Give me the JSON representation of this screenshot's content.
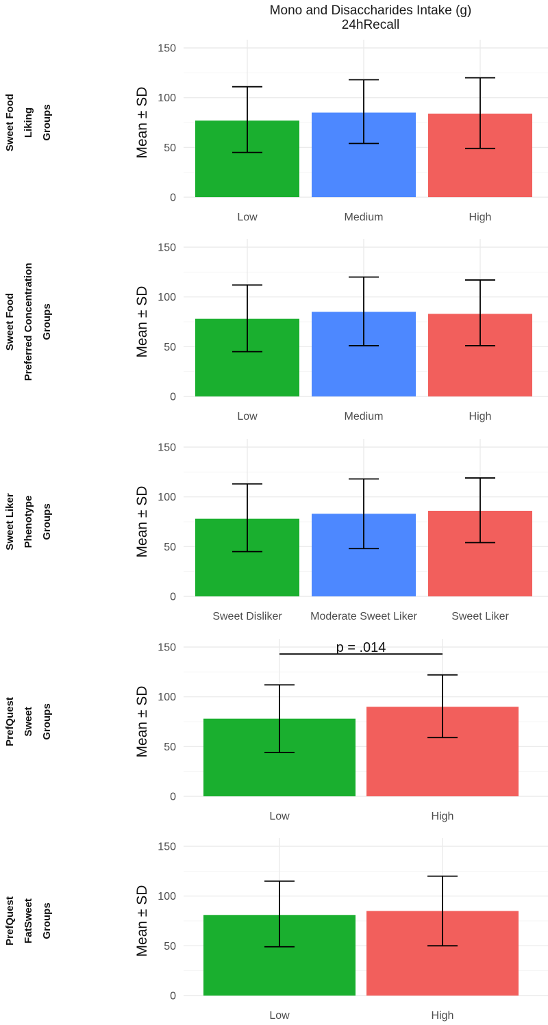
{
  "title": {
    "line1": "Mono and Disaccharides Intake (g)",
    "line2": "24hRecall"
  },
  "colors": {
    "green": "#1aaf2f",
    "blue": "#4d88ff",
    "red": "#f25f5c"
  },
  "chart_data": [
    {
      "type": "bar",
      "row_label": [
        "Sweet Food",
        "Liking",
        "Groups"
      ],
      "ylabel": "Mean ± SD",
      "ylim": [
        0,
        150
      ],
      "yticks": [
        0,
        50,
        100,
        150
      ],
      "categories": [
        "Low",
        "Medium",
        "High"
      ],
      "values": [
        77,
        85,
        84
      ],
      "sd_low": [
        45,
        54,
        49
      ],
      "sd_high": [
        111,
        118,
        120
      ],
      "bar_colors": [
        "green",
        "blue",
        "red"
      ]
    },
    {
      "type": "bar",
      "row_label": [
        "Sweet Food",
        "Preferred Concentration",
        "Groups"
      ],
      "ylabel": "Mean ± SD",
      "ylim": [
        0,
        150
      ],
      "yticks": [
        0,
        50,
        100,
        150
      ],
      "categories": [
        "Low",
        "Medium",
        "High"
      ],
      "values": [
        78,
        85,
        83
      ],
      "sd_low": [
        45,
        51,
        51
      ],
      "sd_high": [
        112,
        120,
        117
      ],
      "bar_colors": [
        "green",
        "blue",
        "red"
      ]
    },
    {
      "type": "bar",
      "row_label": [
        "Sweet Liker",
        "Phenotype",
        "Groups"
      ],
      "ylabel": "Mean ± SD",
      "ylim": [
        0,
        150
      ],
      "yticks": [
        0,
        50,
        100,
        150
      ],
      "categories": [
        "Sweet Disliker",
        "Moderate Sweet Liker",
        "Sweet Liker"
      ],
      "values": [
        78,
        83,
        86
      ],
      "sd_low": [
        45,
        48,
        54
      ],
      "sd_high": [
        113,
        118,
        119
      ],
      "bar_colors": [
        "green",
        "blue",
        "red"
      ]
    },
    {
      "type": "bar",
      "row_label": [
        "PrefQuest",
        "Sweet",
        "Groups"
      ],
      "ylabel": "Mean ± SD",
      "ylim": [
        0,
        150
      ],
      "yticks": [
        0,
        50,
        100,
        150
      ],
      "categories": [
        "Low",
        "High"
      ],
      "values": [
        78,
        90
      ],
      "sd_low": [
        44,
        59
      ],
      "sd_high": [
        112,
        122
      ],
      "bar_colors": [
        "green",
        "red"
      ],
      "annotation": {
        "text": "p = .014",
        "y": 143
      }
    },
    {
      "type": "bar",
      "row_label": [
        "PrefQuest",
        "FatSweet",
        "Groups"
      ],
      "ylabel": "Mean ± SD",
      "ylim": [
        0,
        150
      ],
      "yticks": [
        0,
        50,
        100,
        150
      ],
      "categories": [
        "Low",
        "High"
      ],
      "values": [
        81,
        85
      ],
      "sd_low": [
        49,
        50
      ],
      "sd_high": [
        115,
        120
      ],
      "bar_colors": [
        "green",
        "red"
      ]
    }
  ]
}
